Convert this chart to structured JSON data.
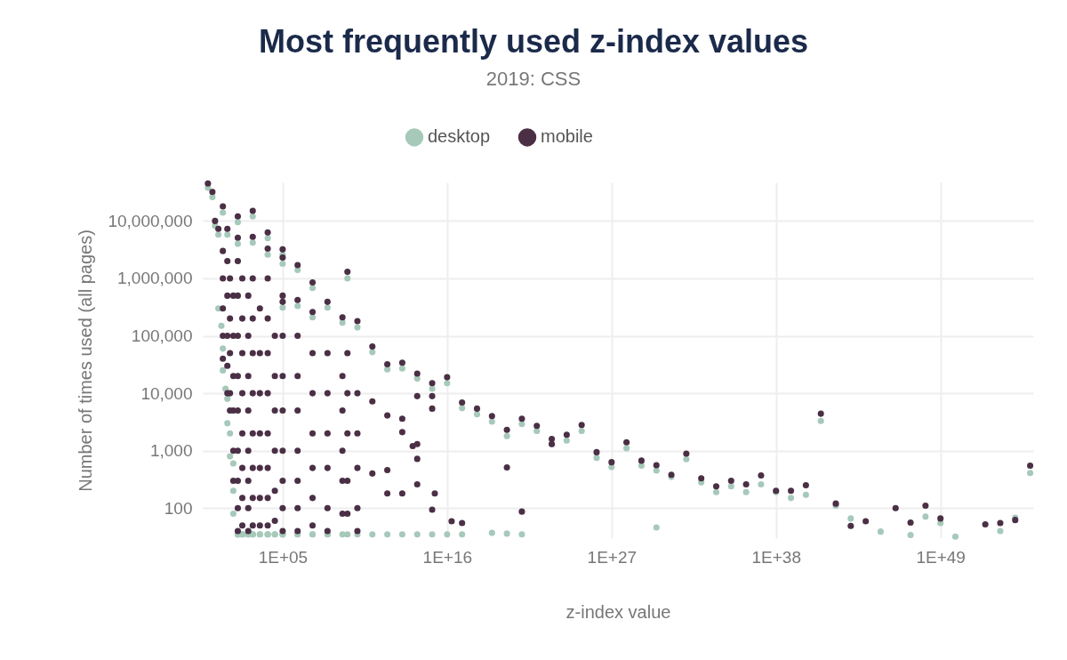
{
  "chart_data": {
    "type": "scatter",
    "title": "Most frequently used z-index values",
    "subtitle": "2019: CSS",
    "xlabel": "z-index value",
    "ylabel": "Number of times used (all pages)",
    "log": "xy",
    "grid": true,
    "legend": "top",
    "marker": "circle",
    "xlim": [
      0.45,
      1.6e+55
    ],
    "ylim": [
      30,
      47000000.0
    ],
    "xticks": [
      {
        "value": 100000.0,
        "label": "1E+05"
      },
      {
        "value": 1e+16,
        "label": "1E+16"
      },
      {
        "value": 1e+27,
        "label": "1E+27"
      },
      {
        "value": 1e+38,
        "label": "1E+38"
      },
      {
        "value": 1e+49,
        "label": "1E+49"
      }
    ],
    "yticks": [
      {
        "value": 100,
        "label": "100"
      },
      {
        "value": 1000,
        "label": "1,000"
      },
      {
        "value": 10000,
        "label": "10,000"
      },
      {
        "value": 100000,
        "label": "100,000"
      },
      {
        "value": 1000000,
        "label": "1,000,000"
      },
      {
        "value": 10000000,
        "label": "10,000,000"
      }
    ],
    "series": [
      {
        "name": "desktop",
        "color": "#a6c9ba",
        "x": [
          1,
          2,
          3,
          5,
          10,
          20,
          100,
          100,
          999,
          999,
          9999,
          9999,
          99999,
          99999,
          999999,
          9999999,
          2147483647,
          99999,
          999999,
          99999999,
          9999999,
          999999999,
          9999999999,
          99999999999,
          1000000000000.0,
          10000000000000.0,
          100000000000000.0,
          1000000000000000.0,
          1e+16,
          1e+17,
          1e+18,
          1e+19,
          1e+20,
          1e+21,
          1e+22,
          1e+23,
          1e+24,
          1e+25,
          1e+26,
          1e+27,
          1e+28,
          1e+29,
          1e+30,
          1e+31,
          1e+32,
          1e+33,
          1e+34,
          1e+35,
          1e+36,
          1e+37,
          1e+38,
          1e+39,
          1e+40,
          1e+41,
          1e+42,
          1e+43,
          1e+45,
          1e+47,
          1e+48,
          1e+49,
          1e+50,
          1e+53,
          1e+54,
          1e+55,
          1e+30,
          1e+19,
          1e+20,
          1e+21,
          5,
          8,
          10,
          10,
          15,
          20,
          20,
          30,
          30,
          50,
          50,
          50,
          100,
          100,
          100,
          100,
          100,
          200,
          200,
          200,
          500,
          500,
          500,
          999,
          999,
          999,
          3000,
          3000,
          9999,
          9999,
          9999,
          30000,
          30000,
          99999,
          99999,
          99999,
          999999,
          999999,
          9999999,
          9999999,
          99999999,
          99999999,
          999999999,
          2147483647,
          9999999999,
          100000000000.0,
          1000000000000.0,
          10000000000000.0,
          100000000000000.0,
          1000000000000000.0,
          1e+16,
          1e+17
        ],
        "values": [
          38000000,
          26000000,
          8200000,
          5800000,
          14000000,
          5800000,
          9500000,
          4000000,
          12000000,
          4200000,
          5000000,
          2600000,
          2600000,
          1800000,
          1400000,
          680000,
          1000000,
          310000,
          330000,
          310000,
          210000,
          170000,
          140000,
          52000,
          26000,
          27000,
          18000,
          12000,
          15000,
          5500,
          4300,
          3200,
          1800,
          2900,
          2200,
          1300,
          1500,
          2200,
          750,
          520,
          1100,
          550,
          450,
          350,
          710,
          280,
          190,
          240,
          190,
          260,
          190,
          150,
          170,
          3300,
          110,
          66,
          39,
          34,
          71,
          55,
          32,
          40,
          68,
          410,
          46,
          37,
          36,
          35,
          300000,
          150000,
          60000,
          25000,
          12000,
          8000,
          3000,
          2000,
          800,
          600,
          200,
          80,
          35,
          35,
          35,
          35,
          35,
          35,
          35,
          35,
          35,
          35,
          35,
          35,
          35,
          35,
          35,
          35,
          35,
          35,
          35,
          35,
          35,
          35,
          35,
          35,
          35,
          35,
          35,
          35,
          35,
          35,
          35,
          35,
          35,
          35,
          35,
          35,
          35,
          35,
          35,
          35
        ]
      },
      {
        "name": "mobile",
        "color": "#4a2f45",
        "x": [
          1,
          2,
          3,
          5,
          10,
          20,
          100,
          100,
          999,
          999,
          9999,
          9999,
          99999,
          99999,
          999999,
          9999999,
          2147483647,
          99999,
          999999,
          99999999,
          9999999,
          999999999,
          9999999999,
          99999999999,
          1000000000000.0,
          10000000000000.0,
          100000000000000.0,
          1000000000000000.0,
          1e+16,
          1e+17,
          1e+18,
          1e+19,
          1e+20,
          1e+21,
          1e+22,
          1e+23,
          1e+23,
          1e+24,
          1e+25,
          1e+26,
          1e+27,
          1e+20,
          100000000000000.0,
          1000000000000000.0,
          1000000000000000.0,
          10000000000000.0,
          1000000000000.0,
          99999999999,
          10000000000000.0,
          50000000000000.0,
          100000000000000.0,
          100000000000000.0,
          1000000000000.0,
          99999999999,
          100000000000000.0,
          1500000000000000.0,
          1000000000000000.0,
          10000000000000.0,
          1000000000000.0,
          1e+21,
          2e+16,
          1e+17,
          1e+28,
          1e+29,
          1e+30,
          1e+31,
          1e+32,
          1e+33,
          1e+34,
          1e+35,
          1e+36,
          1e+37,
          1e+38,
          1e+39,
          1e+40,
          1e+41,
          1e+42,
          1e+43,
          1e+44,
          1e+46,
          1e+47,
          1e+48,
          1e+49,
          1e+52,
          1e+53,
          1e+54,
          1e+55,
          10,
          10,
          10,
          10,
          10,
          20,
          20,
          20,
          20,
          20,
          30,
          30,
          30,
          30,
          30,
          50,
          50,
          50,
          50,
          50,
          50,
          100,
          100,
          100,
          100,
          100,
          100,
          100,
          100,
          100,
          200,
          200,
          200,
          200,
          200,
          200,
          200,
          200,
          500,
          500,
          500,
          500,
          500,
          500,
          500,
          500,
          999,
          999,
          999,
          999,
          999,
          999,
          999,
          999,
          3000,
          3000,
          3000,
          3000,
          3000,
          3000,
          3000,
          9999,
          9999,
          9999,
          9999,
          9999,
          9999,
          9999,
          9999,
          30000,
          30000,
          30000,
          30000,
          30000,
          30000,
          99999,
          99999,
          99999,
          99999,
          99999,
          99999,
          99999,
          99999,
          999999,
          999999,
          999999,
          999999,
          999999,
          999999,
          999999,
          9999999,
          9999999,
          9999999,
          9999999,
          9999999,
          9999999,
          99999999,
          99999999,
          99999999,
          99999999,
          99999999,
          99999999,
          999999999,
          999999999,
          999999999,
          999999999,
          999999999,
          2147483647,
          2147483647,
          2147483647,
          2147483647,
          2147483647,
          9999999999,
          9999999999,
          9999999999,
          9999999999,
          9999999999
        ],
        "values": [
          45000000,
          32000000,
          10000000,
          7300000,
          18000000,
          7300000,
          12000000,
          5100000,
          15000000,
          5300000,
          6300000,
          3300000,
          3200000,
          2300000,
          1700000,
          850000,
          1300000,
          390000,
          420000,
          390000,
          260000,
          210000,
          180000,
          65000,
          32000,
          34000,
          22000,
          15000,
          19000,
          6900,
          5400,
          4000,
          2300,
          3600,
          2700,
          1600,
          1300,
          1900,
          2800,
          940,
          630,
          510,
          8900,
          8900,
          5400,
          3600,
          4100,
          7200,
          2100,
          1200,
          1300,
          720,
          460,
          400,
          260,
          180,
          94,
          180,
          180,
          87,
          59,
          55,
          1400,
          670,
          560,
          380,
          890,
          330,
          240,
          300,
          260,
          370,
          200,
          200,
          250,
          4400,
          120,
          49,
          59,
          100,
          56,
          110,
          66,
          52,
          55,
          62,
          550,
          3000000,
          1000000,
          300000,
          100000,
          40000,
          2000000,
          500000,
          100000,
          30000,
          10000,
          1000000,
          200000,
          50000,
          10000,
          5000,
          500000,
          100000,
          20000,
          5000,
          1000,
          300,
          2000000,
          500000,
          100000,
          20000,
          5000,
          1000,
          300,
          100,
          40,
          1000000,
          200000,
          50000,
          10000,
          2000,
          500,
          150,
          50,
          500000,
          100000,
          20000,
          5000,
          1000,
          300,
          100,
          40,
          1000000,
          200000,
          50000,
          10000,
          2000,
          500,
          150,
          50,
          300000,
          50000,
          10000,
          2000,
          500,
          150,
          50,
          1000000,
          200000,
          50000,
          10000,
          2000,
          500,
          150,
          50,
          100000,
          20000,
          5000,
          1000,
          200,
          60,
          500000,
          100000,
          20000,
          5000,
          1000,
          300,
          100,
          40,
          100000,
          20000,
          5000,
          1000,
          300,
          100,
          40,
          50000,
          10000,
          2000,
          500,
          150,
          50,
          50000,
          10000,
          2000,
          500,
          100,
          40,
          20000,
          5000,
          1000,
          300,
          80,
          50000,
          10000,
          2000,
          300,
          80,
          10000,
          2000,
          500,
          100,
          40
        ]
      }
    ]
  }
}
